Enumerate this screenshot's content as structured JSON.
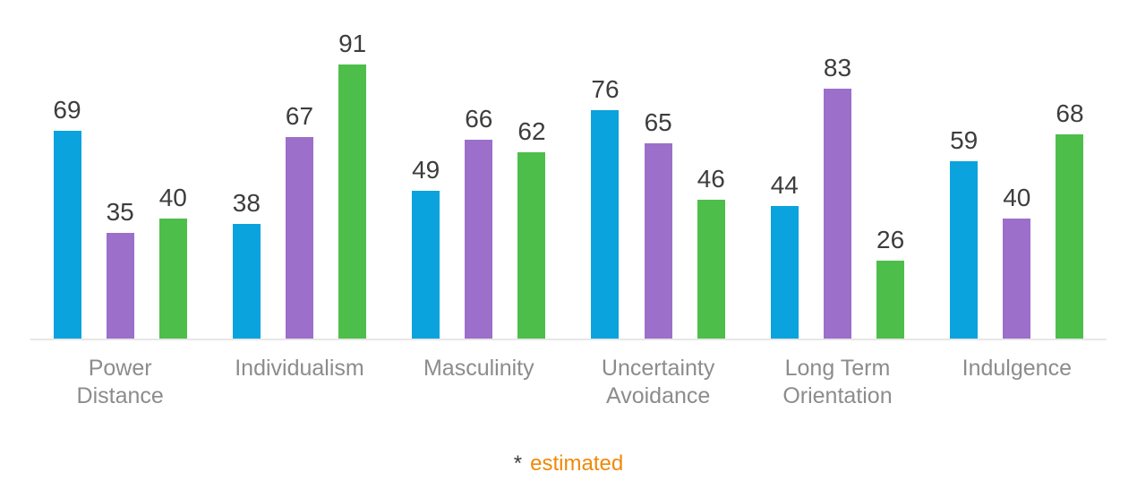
{
  "chart_data": {
    "type": "bar",
    "title": "",
    "xlabel": "",
    "ylabel": "",
    "ylim": [
      0,
      100
    ],
    "grid": false,
    "legend_position": "none",
    "value_labels_shown": true,
    "categories": [
      "Power Distance",
      "Individualism",
      "Masculinity",
      "Uncertainty Avoidance",
      "Long Term Orientation",
      "Indulgence"
    ],
    "series": [
      {
        "color_name": "blue",
        "color": "#0aa3dd",
        "values": [
          69,
          38,
          49,
          76,
          44,
          59
        ]
      },
      {
        "color_name": "purple",
        "color": "#9b6fca",
        "values": [
          35,
          67,
          66,
          65,
          83,
          40
        ]
      },
      {
        "color_name": "green",
        "color": "#4ebe4b",
        "values": [
          40,
          91,
          62,
          46,
          26,
          68
        ]
      }
    ]
  },
  "footnote": {
    "marker": "*",
    "text": "estimated"
  },
  "colors": {
    "value_label": "#3d3d3d",
    "category_label": "#8c8c8c",
    "baseline": "#e6e6e6",
    "footnote_text": "#ef8909",
    "background": "#ffffff"
  }
}
